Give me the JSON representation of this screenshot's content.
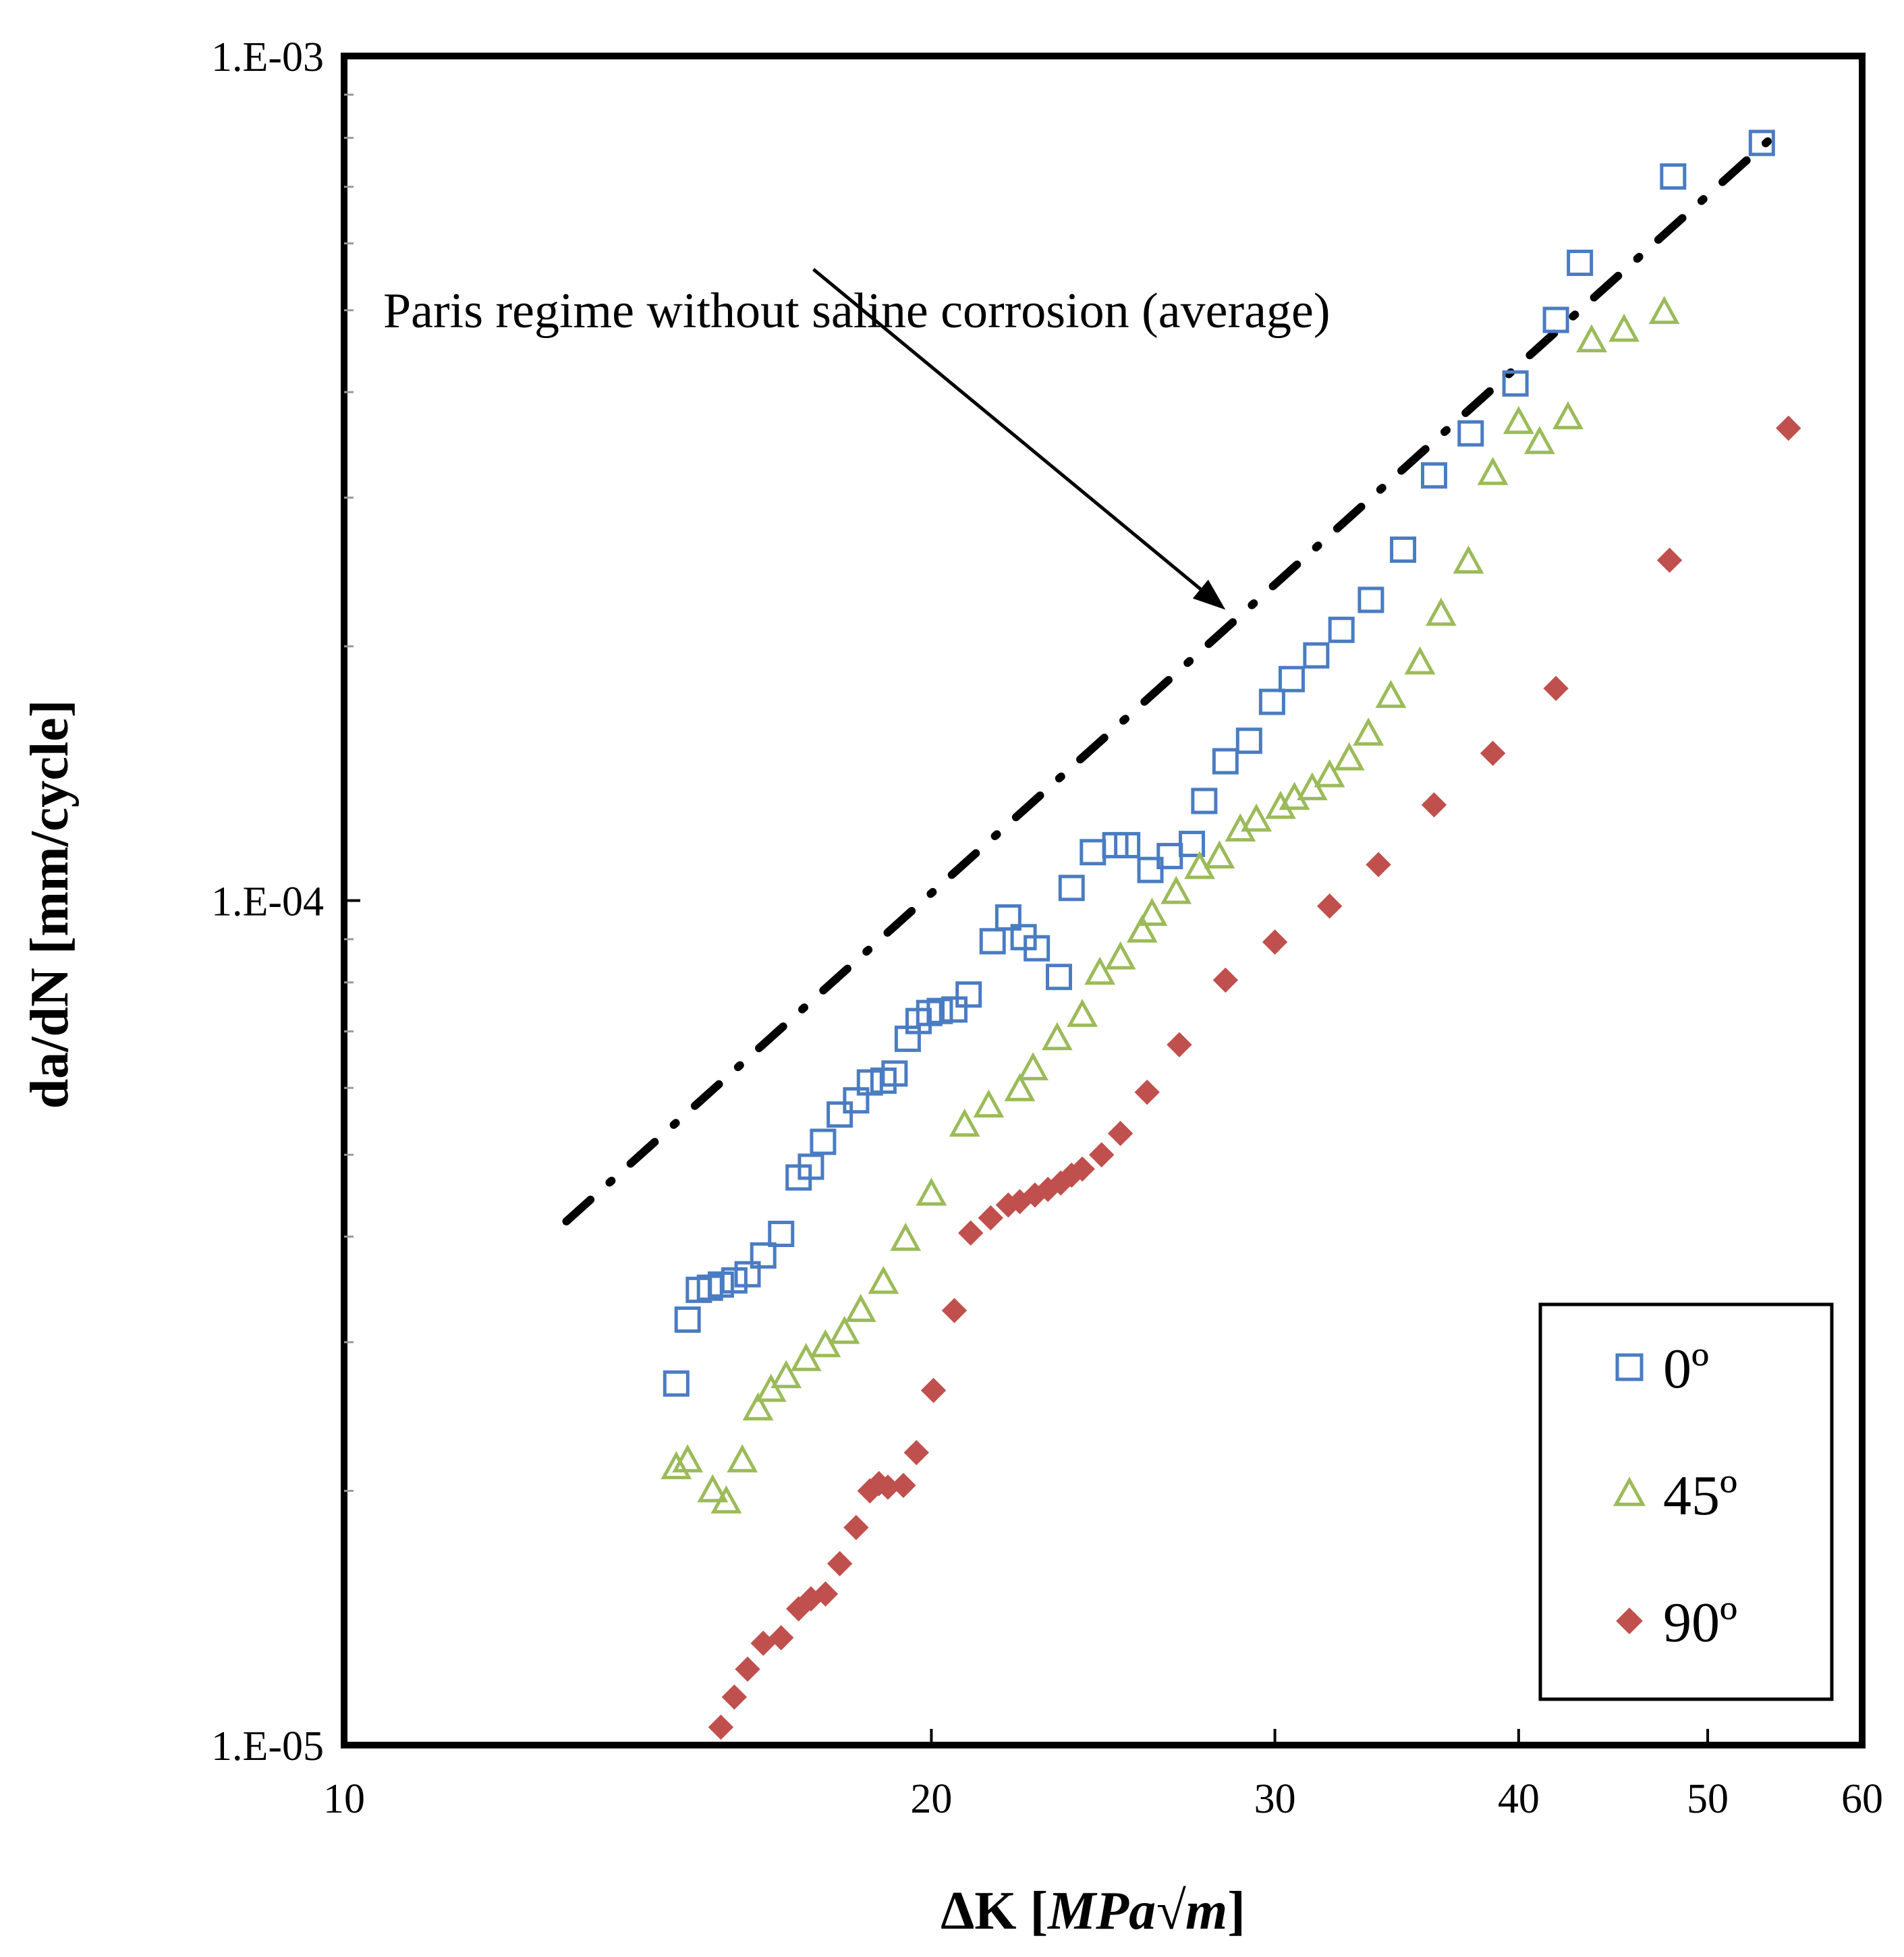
{
  "chart_data": {
    "type": "scatter",
    "title": "",
    "xlabel_main": "ΔK [",
    "xlabel_italic": "MPa√m",
    "xlabel_end": "]",
    "ylabel": "da/dN [mm/cycle]",
    "xscale": "log",
    "yscale": "log",
    "xlim": [
      10,
      60
    ],
    "ylim": [
      1e-05,
      0.001
    ],
    "x_ticks": [
      10,
      20,
      30,
      40,
      50,
      60
    ],
    "x_tick_labels": [
      "10",
      "20",
      "30",
      "40",
      "50",
      "60"
    ],
    "y_ticks": [
      1e-05,
      0.0001,
      0.001
    ],
    "y_tick_labels": [
      "1.E-05",
      "1.E-04",
      "1.E-03"
    ],
    "grid": false,
    "legend_position": "bottom-right",
    "annotation": {
      "text": "Paris regime without saline corrosion (average)",
      "arrow_from": [
        17.4,
        0.000559
      ],
      "arrow_to": [
        28.3,
        0.000221
      ]
    },
    "reference_line": {
      "name": "Paris regime without saline corrosion (average)",
      "style": "dash-dot",
      "color": "#000000",
      "x": [
        13.0,
        54.5
      ],
      "y": [
        4.17e-05,
        0.000818
      ]
    },
    "series": [
      {
        "name": "0º",
        "marker": "open-square",
        "color": "#4a7cc2",
        "points": [
          [
            14.8,
            2.68e-05
          ],
          [
            15.0,
            3.19e-05
          ],
          [
            15.2,
            3.46e-05
          ],
          [
            15.4,
            3.48e-05
          ],
          [
            15.6,
            3.51e-05
          ],
          [
            15.85,
            3.55e-05
          ],
          [
            16.1,
            3.61e-05
          ],
          [
            16.4,
            3.8e-05
          ],
          [
            16.75,
            4.03e-05
          ],
          [
            17.1,
            4.7e-05
          ],
          [
            17.35,
            4.84e-05
          ],
          [
            17.6,
            5.18e-05
          ],
          [
            17.95,
            5.58e-05
          ],
          [
            18.3,
            5.8e-05
          ],
          [
            18.6,
            6.09e-05
          ],
          [
            18.9,
            6.12e-05
          ],
          [
            19.15,
            6.24e-05
          ],
          [
            19.45,
            6.86e-05
          ],
          [
            19.7,
            7.2e-05
          ],
          [
            19.95,
            7.36e-05
          ],
          [
            20.2,
            7.4e-05
          ],
          [
            20.55,
            7.43e-05
          ],
          [
            20.9,
            7.74e-05
          ],
          [
            21.5,
            8.95e-05
          ],
          [
            21.9,
            9.55e-05
          ],
          [
            22.3,
            9.05e-05
          ],
          [
            22.65,
            8.78e-05
          ],
          [
            23.25,
            8.12e-05
          ],
          [
            23.6,
            0.0001035
          ],
          [
            24.2,
            0.0001141
          ],
          [
            24.85,
            0.0001163
          ],
          [
            25.2,
            0.0001163
          ],
          [
            25.9,
            0.0001087
          ],
          [
            26.5,
            0.0001129
          ],
          [
            27.2,
            0.0001167
          ],
          [
            27.6,
            0.0001312
          ],
          [
            28.3,
            0.0001462
          ],
          [
            29.1,
            0.0001546
          ],
          [
            29.9,
            0.0001719
          ],
          [
            30.6,
            0.0001829
          ],
          [
            31.5,
            0.0001951
          ],
          [
            32.45,
            0.0002092
          ],
          [
            33.6,
            0.000227
          ],
          [
            34.9,
            0.0002603
          ],
          [
            36.2,
            0.0003187
          ],
          [
            37.8,
            0.0003574
          ],
          [
            39.85,
            0.0004095
          ],
          [
            41.8,
            0.000487
          ],
          [
            43.0,
            0.000569
          ],
          [
            48.0,
            0.00072
          ],
          [
            53.3,
            0.000789
          ]
        ]
      },
      {
        "name": "45º",
        "marker": "open-triangle",
        "color": "#9bbb59",
        "points": [
          [
            14.8,
            2.13e-05
          ],
          [
            15.0,
            2.17e-05
          ],
          [
            15.45,
            2e-05
          ],
          [
            15.7,
            1.94e-05
          ],
          [
            16.0,
            2.17e-05
          ],
          [
            16.3,
            2.5e-05
          ],
          [
            16.55,
            2.63e-05
          ],
          [
            16.85,
            2.73e-05
          ],
          [
            17.25,
            2.86e-05
          ],
          [
            17.65,
            2.97e-05
          ],
          [
            18.05,
            3.08e-05
          ],
          [
            18.4,
            3.27e-05
          ],
          [
            18.9,
            3.53e-05
          ],
          [
            19.4,
            3.97e-05
          ],
          [
            20.0,
            4.49e-05
          ],
          [
            20.8,
            5.42e-05
          ],
          [
            21.4,
            5.71e-05
          ],
          [
            22.2,
            5.97e-05
          ],
          [
            22.55,
            6.32e-05
          ],
          [
            23.2,
            6.86e-05
          ],
          [
            23.9,
            7.31e-05
          ],
          [
            24.4,
            8.2e-05
          ],
          [
            25.0,
            8.55e-05
          ],
          [
            25.65,
            9.2e-05
          ],
          [
            25.95,
            9.63e-05
          ],
          [
            26.7,
            0.0001022
          ],
          [
            27.45,
            0.0001094
          ],
          [
            28.1,
            0.0001126
          ],
          [
            28.8,
            0.0001212
          ],
          [
            29.35,
            0.0001245
          ],
          [
            30.2,
            0.0001289
          ],
          [
            30.7,
            0.0001321
          ],
          [
            31.35,
            0.0001356
          ],
          [
            32.0,
            0.0001405
          ],
          [
            32.75,
            0.0001471
          ],
          [
            33.5,
            0.0001574
          ],
          [
            34.4,
            0.0001744
          ],
          [
            35.6,
            0.0001911
          ],
          [
            36.5,
            0.0002182
          ],
          [
            37.7,
            0.0002516
          ],
          [
            38.8,
            0.0003203
          ],
          [
            40.0,
            0.0003681
          ],
          [
            41.0,
            0.0003485
          ],
          [
            42.4,
            0.0003729
          ],
          [
            43.6,
            0.0004599
          ],
          [
            45.3,
            0.0004733
          ],
          [
            47.5,
            0.0004968
          ]
        ]
      },
      {
        "name": "90º",
        "marker": "filled-diamond",
        "color": "#c0504d",
        "points": [
          [
            15.6,
            1.05e-05
          ],
          [
            15.85,
            1.14e-05
          ],
          [
            16.1,
            1.23e-05
          ],
          [
            16.4,
            1.32e-05
          ],
          [
            16.75,
            1.34e-05
          ],
          [
            17.1,
            1.45e-05
          ],
          [
            17.35,
            1.49e-05
          ],
          [
            17.65,
            1.51e-05
          ],
          [
            17.95,
            1.64e-05
          ],
          [
            18.3,
            1.81e-05
          ],
          [
            18.6,
            2e-05
          ],
          [
            18.8,
            2.04e-05
          ],
          [
            19.0,
            2.02e-05
          ],
          [
            19.35,
            2.03e-05
          ],
          [
            19.65,
            2.22e-05
          ],
          [
            20.05,
            2.63e-05
          ],
          [
            20.55,
            3.27e-05
          ],
          [
            20.95,
            4.04e-05
          ],
          [
            21.45,
            4.21e-05
          ],
          [
            21.9,
            4.36e-05
          ],
          [
            22.2,
            4.4e-05
          ],
          [
            22.6,
            4.48e-05
          ],
          [
            22.95,
            4.55e-05
          ],
          [
            23.3,
            4.63e-05
          ],
          [
            23.6,
            4.73e-05
          ],
          [
            23.9,
            4.81e-05
          ],
          [
            24.45,
            5e-05
          ],
          [
            25.0,
            5.3e-05
          ],
          [
            25.8,
            5.93e-05
          ],
          [
            26.8,
            6.75e-05
          ],
          [
            28.3,
            8.05e-05
          ],
          [
            30.0,
            8.93e-05
          ],
          [
            32.0,
            9.85e-05
          ],
          [
            33.9,
            0.0001103
          ],
          [
            36.2,
            0.0001298
          ],
          [
            38.8,
            0.0001494
          ],
          [
            41.8,
            0.0001783
          ],
          [
            47.8,
            0.0002529
          ],
          [
            55.0,
            0.0003625
          ]
        ]
      }
    ]
  }
}
